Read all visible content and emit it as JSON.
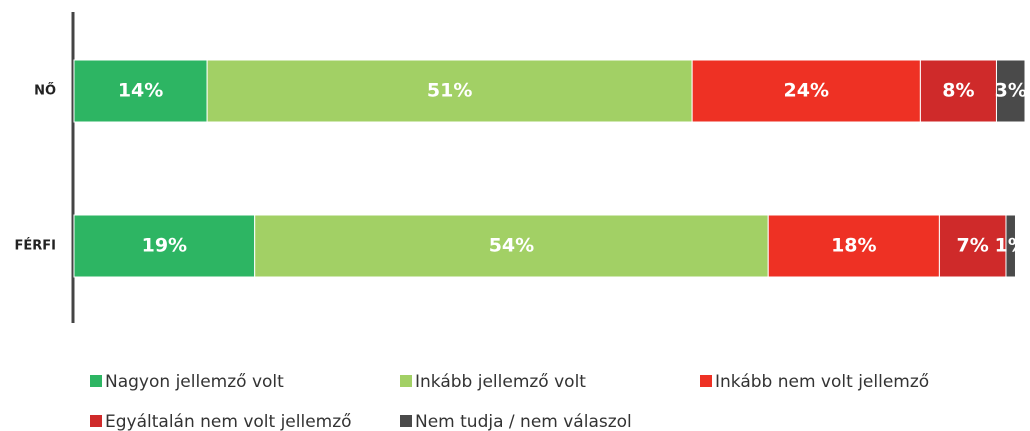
{
  "chart_data": {
    "type": "stacked-bar",
    "orientation": "horizontal",
    "categories": [
      "NŐ",
      "FÉRFI"
    ],
    "xlim": [
      0,
      100
    ],
    "series": [
      {
        "name": "Nagyon jellemző volt",
        "color": "#2db563",
        "values": [
          14,
          19
        ],
        "value_labels": [
          "14%",
          "19%"
        ]
      },
      {
        "name": "Inkább jellemző volt",
        "color": "#a2d065",
        "values": [
          51,
          54
        ],
        "value_labels": [
          "51%",
          "54%"
        ]
      },
      {
        "name": "Inkább nem volt jellemző",
        "color": "#ee3124",
        "values": [
          24,
          18
        ],
        "value_labels": [
          "24%",
          "18%"
        ]
      },
      {
        "name": "Egyáltalán nem volt jellemző",
        "color": "#cf2a2a",
        "values": [
          8,
          7
        ],
        "value_labels": [
          "8%",
          "7%"
        ]
      },
      {
        "name": "Nem tudja / nem válaszol",
        "color": "#4a4a4a",
        "values": [
          3,
          1
        ],
        "value_labels": [
          "3%",
          "1%"
        ]
      }
    ]
  }
}
